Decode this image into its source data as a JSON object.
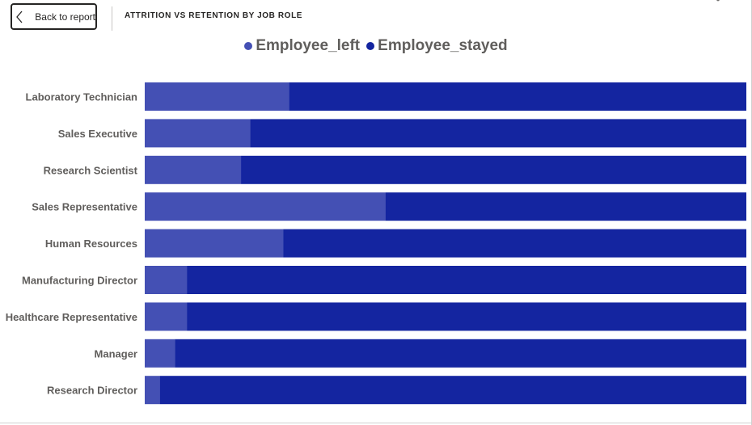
{
  "header": {
    "back_label": "Back to report",
    "title": "ATTRITION VS RETENTION BY JOB ROLE"
  },
  "colors": {
    "employee_left": "#4450b4",
    "employee_stayed": "#1425a0"
  },
  "chart_data": {
    "type": "bar",
    "orientation": "horizontal",
    "stacking": "100%",
    "title": "ATTRITION VS RETENTION BY JOB ROLE",
    "legend_position": "top-center",
    "grid": false,
    "categories": [
      "Laboratory Technician",
      "Sales Executive",
      "Research Scientist",
      "Sales Representative",
      "Human Resources",
      "Manufacturing Director",
      "Healthcare Representative",
      "Manager",
      "Research Director"
    ],
    "series": [
      {
        "name": "Employee_left",
        "values": [
          0.24,
          0.175,
          0.16,
          0.4,
          0.23,
          0.07,
          0.07,
          0.05,
          0.025
        ]
      },
      {
        "name": "Employee_stayed",
        "values": [
          0.76,
          0.825,
          0.84,
          0.6,
          0.77,
          0.93,
          0.93,
          0.95,
          0.975
        ]
      }
    ],
    "xlim": [
      0,
      1
    ]
  }
}
